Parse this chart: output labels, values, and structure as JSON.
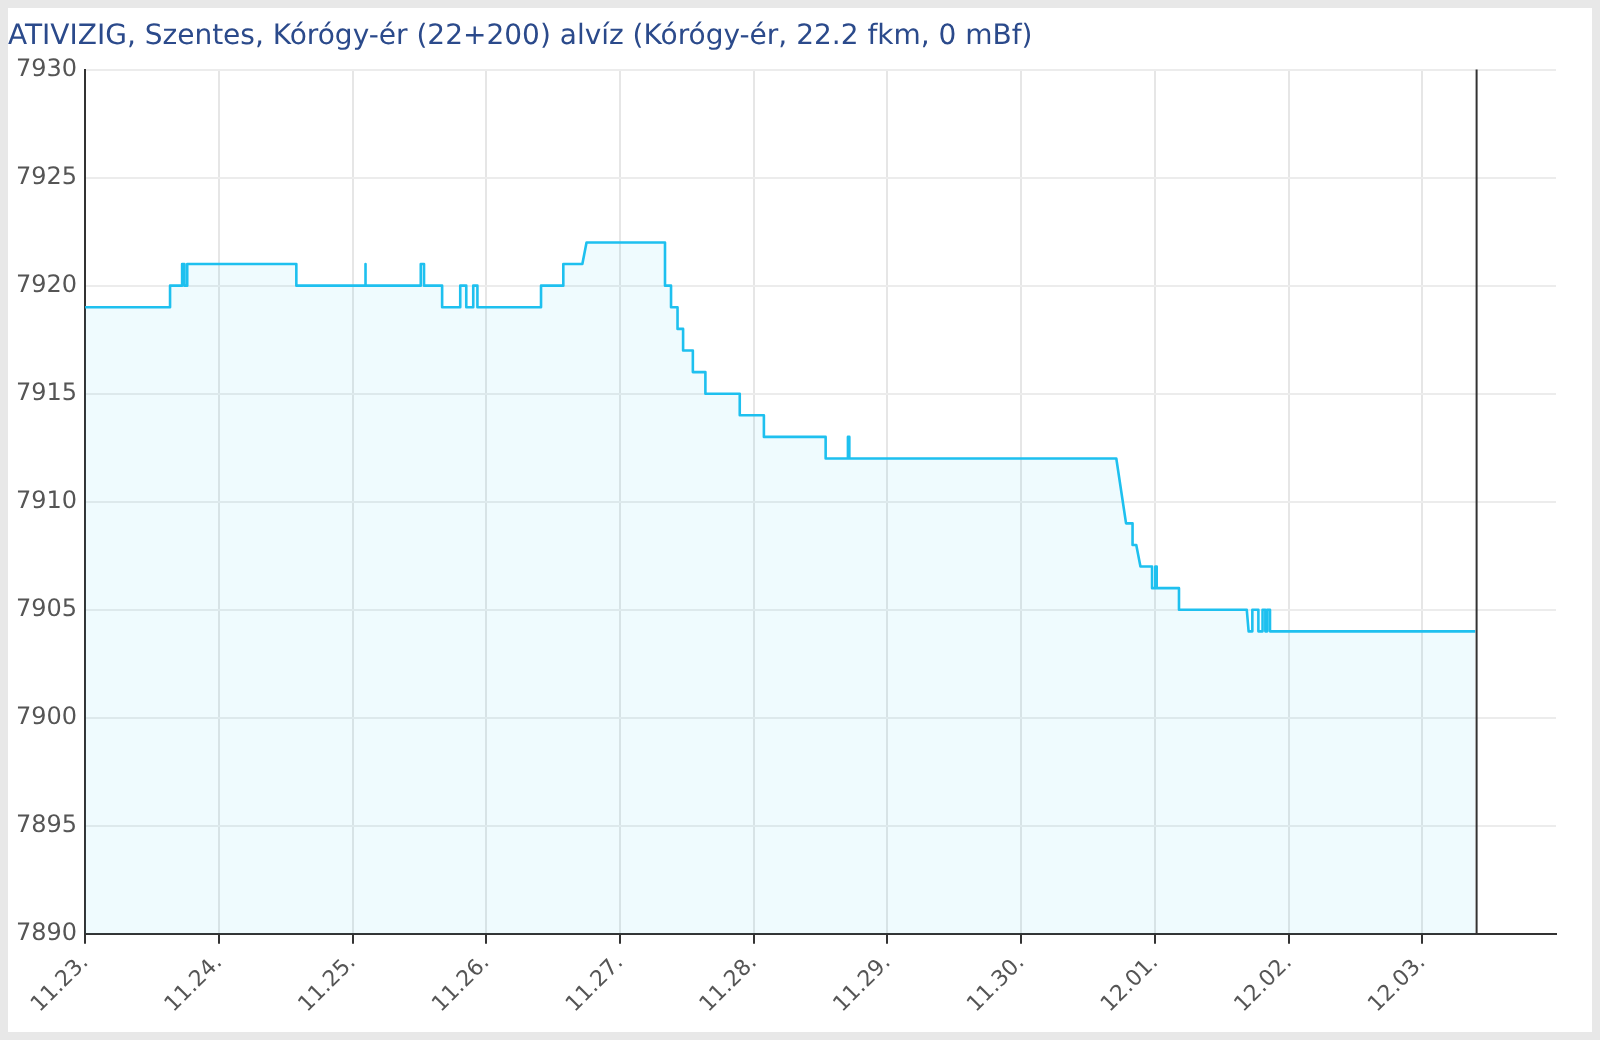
{
  "chart_data": {
    "type": "area",
    "title": "ATIVIZIG, Szentes, Kórógy-ér (22+200) alvíz (Kórógy-ér, 22.2 fkm, 0 mBf)",
    "xlim": [
      "--11-23",
      "--12-04"
    ],
    "xticks": [
      {
        "value": "--11-23",
        "label": "11.23."
      },
      {
        "value": "--11-24",
        "label": "11.24."
      },
      {
        "value": "--11-25",
        "label": "11.25."
      },
      {
        "value": "--11-26",
        "label": "11.26."
      },
      {
        "value": "--11-27",
        "label": "11.27."
      },
      {
        "value": "--11-28",
        "label": "11.28."
      },
      {
        "value": "--11-29",
        "label": "11.29."
      },
      {
        "value": "--11-30",
        "label": "11.30."
      },
      {
        "value": "--12-01",
        "label": "12.01."
      },
      {
        "value": "--12-02",
        "label": "12.02."
      },
      {
        "value": "--12-03",
        "label": "12.03."
      }
    ],
    "ylim": [
      7890,
      7930
    ],
    "yticks": [
      7890,
      7895,
      7900,
      7905,
      7910,
      7915,
      7920,
      7925,
      7930
    ],
    "grid": true,
    "legend": false,
    "marker": "none",
    "ref_lines": [
      {
        "axis": "x",
        "value": "--12-03T09:45",
        "color": "#333333"
      }
    ],
    "series": [
      {
        "color": "#1ec0ef",
        "x": [
          "--11-23T00:00",
          "--11-23T15:15",
          "--11-23T15:15",
          "--11-23T17:25",
          "--11-23T17:25",
          "--11-23T17:50",
          "--11-23T17:50",
          "--11-23T18:20",
          "--11-23T18:20",
          "--11-24T13:55",
          "--11-24T13:55",
          "--11-25T02:10",
          "--11-25T02:10",
          "--11-25T02:25",
          "--11-25T02:25",
          "--11-25T12:15",
          "--11-25T12:15",
          "--11-25T12:50",
          "--11-25T12:50",
          "--11-25T16:05",
          "--11-25T16:05",
          "--11-25T19:20",
          "--11-25T19:20",
          "--11-25T20:25",
          "--11-25T20:25",
          "--11-25T21:40",
          "--11-25T21:40",
          "--11-25T22:25",
          "--11-25T22:25",
          "--11-26T09:50",
          "--11-26T09:50",
          "--11-26T13:50",
          "--11-26T13:50",
          "--11-26T17:15",
          "--11-26T18:00",
          "--11-27T08:05",
          "--11-27T08:05",
          "--11-27T09:10",
          "--11-27T09:10",
          "--11-27T10:20",
          "--11-27T10:20",
          "--11-27T11:20",
          "--11-27T11:20",
          "--11-27T13:05",
          "--11-27T13:05",
          "--11-27T15:20",
          "--11-27T15:20",
          "--11-27T21:30",
          "--11-27T21:30",
          "--11-28T01:50",
          "--11-28T01:50",
          "--11-28T12:55",
          "--11-28T12:55",
          "--11-28T16:55",
          "--11-28T16:55",
          "--11-28T17:10",
          "--11-28T17:10",
          "--11-30T17:05",
          "--11-30T18:50",
          "--11-30T20:00",
          "--11-30T20:00",
          "--11-30T20:40",
          "--11-30T21:25",
          "--11-30T23:30",
          "--11-30T23:30",
          "--12-01T00:05",
          "--12-01T00:05",
          "--12-01T00:20",
          "--12-01T00:20",
          "--12-01T04:20",
          "--12-01T04:20",
          "--12-01T16:30",
          "--12-01T16:50",
          "--12-01T17:30",
          "--12-01T17:30",
          "--12-01T18:35",
          "--12-01T18:35",
          "--12-01T19:20",
          "--12-01T19:20",
          "--12-01T19:50",
          "--12-01T19:50",
          "--12-01T20:10",
          "--12-01T20:10",
          "--12-01T20:40",
          "--12-01T20:40",
          "--12-03T09:30"
        ],
        "values": [
          7919,
          7919,
          7920,
          7920,
          7921,
          7921,
          7920,
          7920,
          7921,
          7921,
          7920,
          7920,
          7921,
          7921,
          7920,
          7920,
          7921,
          7921,
          7920,
          7920,
          7919,
          7919,
          7920,
          7920,
          7919,
          7919,
          7920,
          7920,
          7919,
          7919,
          7920,
          7920,
          7921,
          7921,
          7922,
          7922,
          7920,
          7920,
          7919,
          7919,
          7918,
          7918,
          7917,
          7917,
          7916,
          7916,
          7915,
          7915,
          7914,
          7914,
          7913,
          7913,
          7912,
          7912,
          7913,
          7913,
          7912,
          7912,
          7909,
          7909,
          7908,
          7908,
          7907,
          7907,
          7906,
          7906,
          7907,
          7907,
          7906,
          7906,
          7905,
          7905,
          7904,
          7904,
          7905,
          7905,
          7904,
          7904,
          7905,
          7905,
          7904,
          7904,
          7905,
          7905,
          7904,
          7904
        ]
      }
    ]
  }
}
